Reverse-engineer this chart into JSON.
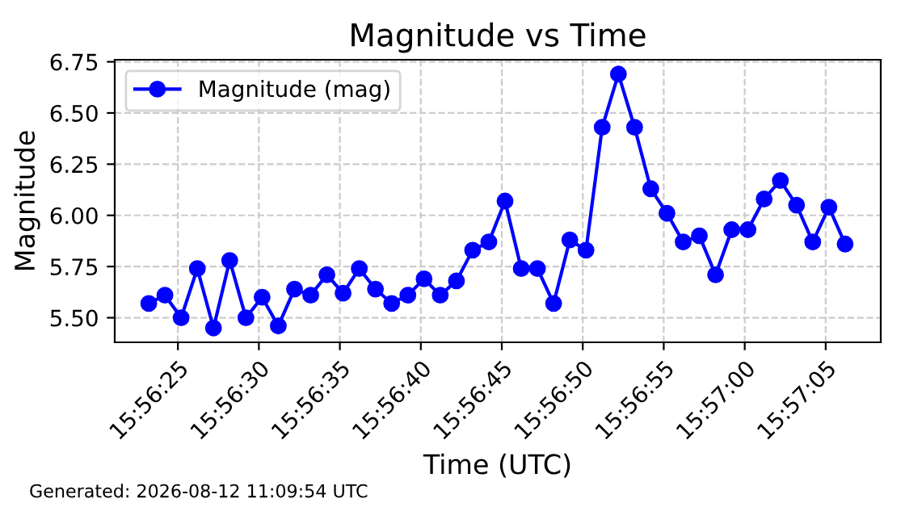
{
  "chart_data": {
    "type": "line",
    "title": "Magnitude vs Time",
    "xlabel": "Time (UTC)",
    "ylabel": "Magnitude",
    "x": [
      "2026-08-12T15:56:23.2",
      "2026-08-12T15:56:24.2",
      "2026-08-12T15:56:25.2",
      "2026-08-12T15:56:26.2",
      "2026-08-12T15:56:27.2",
      "2026-08-12T15:56:28.2",
      "2026-08-12T15:56:29.2",
      "2026-08-12T15:56:30.2",
      "2026-08-12T15:56:31.2",
      "2026-08-12T15:56:32.2",
      "2026-08-12T15:56:33.2",
      "2026-08-12T15:56:34.2",
      "2026-08-12T15:56:35.2",
      "2026-08-12T15:56:36.2",
      "2026-08-12T15:56:37.2",
      "2026-08-12T15:56:38.2",
      "2026-08-12T15:56:39.2",
      "2026-08-12T15:56:40.2",
      "2026-08-12T15:56:41.2",
      "2026-08-12T15:56:42.2",
      "2026-08-12T15:56:43.2",
      "2026-08-12T15:56:44.2",
      "2026-08-12T15:56:45.2",
      "2026-08-12T15:56:46.2",
      "2026-08-12T15:56:47.2",
      "2026-08-12T15:56:48.2",
      "2026-08-12T15:56:49.2",
      "2026-08-12T15:56:50.2",
      "2026-08-12T15:56:51.2",
      "2026-08-12T15:56:52.2",
      "2026-08-12T15:56:53.2",
      "2026-08-12T15:56:54.2",
      "2026-08-12T15:56:55.2",
      "2026-08-12T15:56:56.2",
      "2026-08-12T15:56:57.2",
      "2026-08-12T15:56:58.2",
      "2026-08-12T15:56:59.2",
      "2026-08-12T15:57:00.2",
      "2026-08-12T15:57:01.2",
      "2026-08-12T15:57:02.2",
      "2026-08-12T15:57:03.2",
      "2026-08-12T15:57:04.2",
      "2026-08-12T15:57:05.2",
      "2026-08-12T15:57:06.2"
    ],
    "series": [
      {
        "name": "Magnitude (mag)",
        "color": "#0000ff",
        "values": [
          5.57,
          5.61,
          5.5,
          5.74,
          5.45,
          5.78,
          5.5,
          5.6,
          5.46,
          5.64,
          5.61,
          5.71,
          5.62,
          5.74,
          5.64,
          5.57,
          5.61,
          5.69,
          5.61,
          5.68,
          5.83,
          5.87,
          6.07,
          5.74,
          5.74,
          5.57,
          5.88,
          5.83,
          6.43,
          6.69,
          6.43,
          6.13,
          6.01,
          5.87,
          5.9,
          5.71,
          5.93,
          5.93,
          6.08,
          6.17,
          6.05,
          5.87,
          6.04,
          5.86
        ]
      }
    ],
    "xlim": [
      "2026-08-12T15:56:21.1",
      "2026-08-12T15:57:08.4"
    ],
    "xticks": [
      {
        "value": "2026-08-12T15:56:25",
        "label": "15:56:25"
      },
      {
        "value": "2026-08-12T15:56:30",
        "label": "15:56:30"
      },
      {
        "value": "2026-08-12T15:56:35",
        "label": "15:56:35"
      },
      {
        "value": "2026-08-12T15:56:40",
        "label": "15:56:40"
      },
      {
        "value": "2026-08-12T15:56:45",
        "label": "15:56:45"
      },
      {
        "value": "2026-08-12T15:56:50",
        "label": "15:56:50"
      },
      {
        "value": "2026-08-12T15:56:55",
        "label": "15:56:55"
      },
      {
        "value": "2026-08-12T15:57:00",
        "label": "15:57:00"
      },
      {
        "value": "2026-08-12T15:57:05",
        "label": "15:57:05"
      }
    ],
    "ylim": [
      5.38,
      6.76
    ],
    "yticks": [
      {
        "value": 5.5,
        "label": "5.50"
      },
      {
        "value": 5.75,
        "label": "5.75"
      },
      {
        "value": 6.0,
        "label": "6.00"
      },
      {
        "value": 6.25,
        "label": "6.25"
      },
      {
        "value": 6.5,
        "label": "6.50"
      },
      {
        "value": 6.75,
        "label": "6.75"
      }
    ],
    "grid": true,
    "legend": "top left",
    "marker": "circle",
    "line_style": "solid",
    "annotations": [
      "Generated: 2026-08-12 11:09:54 UTC"
    ]
  }
}
